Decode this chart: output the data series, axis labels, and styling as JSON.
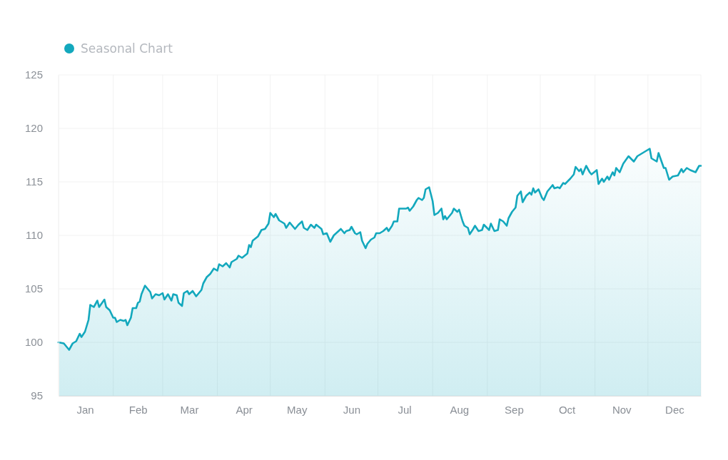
{
  "chart_data": {
    "type": "area",
    "legend": "top left",
    "grid": true,
    "marker": "none",
    "line_style": "solid",
    "xlim": [
      "--01-01",
      "--12-31"
    ],
    "xticks": [
      {
        "value": "--01-01",
        "label": null
      },
      {
        "value": "--01-16",
        "label": "Jan"
      },
      {
        "value": "--02-01",
        "label": null
      },
      {
        "value": "--02-15",
        "label": "Feb"
      },
      {
        "value": "--03-01",
        "label": null
      },
      {
        "value": "--03-16",
        "label": "Mar"
      },
      {
        "value": "--04-01",
        "label": null
      },
      {
        "value": "--04-16",
        "label": "Apr"
      },
      {
        "value": "--05-01",
        "label": null
      },
      {
        "value": "--05-16",
        "label": "May"
      },
      {
        "value": "--06-01",
        "label": null
      },
      {
        "value": "--06-16",
        "label": "Jun"
      },
      {
        "value": "--07-01",
        "label": null
      },
      {
        "value": "--07-16",
        "label": "Jul"
      },
      {
        "value": "--08-01",
        "label": null
      },
      {
        "value": "--08-16",
        "label": "Aug"
      },
      {
        "value": "--09-01",
        "label": null
      },
      {
        "value": "--09-16",
        "label": "Sep"
      },
      {
        "value": "--10-01",
        "label": null
      },
      {
        "value": "--10-16",
        "label": "Oct"
      },
      {
        "value": "--11-01",
        "label": null
      },
      {
        "value": "--11-16",
        "label": "Nov"
      },
      {
        "value": "--12-01",
        "label": null
      },
      {
        "value": "--12-16",
        "label": "Dec"
      },
      {
        "value": "--12-31",
        "label": null
      }
    ],
    "ylim": [
      95,
      125
    ],
    "yticks": [
      95,
      100,
      105,
      110,
      115,
      120,
      125
    ],
    "x": [
      "--01-01",
      "--01-04",
      "--01-07",
      "--01-09",
      "--01-11",
      "--01-13",
      "--01-14",
      "--01-16",
      "--01-18",
      "--01-19",
      "--01-21",
      "--01-23",
      "--01-24",
      "--01-27",
      "--01-28",
      "--01-30",
      "--02-01",
      "--02-02",
      "--02-03",
      "--02-05",
      "--02-07",
      "--02-08",
      "--02-09",
      "--02-11",
      "--02-12",
      "--02-14",
      "--02-15",
      "--02-16",
      "--02-17",
      "--02-19",
      "--02-21",
      "--02-22",
      "--02-23",
      "--02-25",
      "--02-27",
      "--03-01",
      "--03-02",
      "--03-04",
      "--03-06",
      "--03-07",
      "--03-09",
      "--03-10",
      "--03-12",
      "--03-13",
      "--03-15",
      "--03-16",
      "--03-18",
      "--03-20",
      "--03-23",
      "--03-24",
      "--03-26",
      "--03-28",
      "--03-30",
      "--04-01",
      "--04-02",
      "--04-04",
      "--04-06",
      "--04-08",
      "--04-09",
      "--04-12",
      "--04-13",
      "--04-15",
      "--04-18",
      "--04-19",
      "--04-20",
      "--04-21",
      "--04-24",
      "--04-26",
      "--04-28",
      "--04-30",
      "--05-01",
      "--05-03",
      "--05-04",
      "--05-06",
      "--05-07",
      "--05-09",
      "--05-10",
      "--05-12",
      "--05-14",
      "--05-15",
      "--05-17",
      "--05-19",
      "--05-20",
      "--05-22",
      "--05-24",
      "--05-26",
      "--05-27",
      "--05-30",
      "--05-31",
      "--06-02",
      "--06-04",
      "--06-06",
      "--06-08",
      "--06-10",
      "--06-12",
      "--06-13",
      "--06-15",
      "--06-16",
      "--06-18",
      "--06-19",
      "--06-21",
      "--06-22",
      "--06-24",
      "--06-25",
      "--06-27",
      "--06-29",
      "--06-30",
      "--07-02",
      "--07-04",
      "--07-06",
      "--07-07",
      "--07-09",
      "--07-10",
      "--07-12",
      "--07-13",
      "--07-15",
      "--07-17",
      "--07-18",
      "--07-19",
      "--07-21",
      "--07-23",
      "--07-24",
      "--07-26",
      "--07-27",
      "--07-28",
      "--07-30",
      "--08-01",
      "--08-02",
      "--08-04",
      "--08-06",
      "--08-07",
      "--08-08",
      "--08-09",
      "--08-12",
      "--08-13",
      "--08-15",
      "--08-16",
      "--08-18",
      "--08-19",
      "--08-21",
      "--08-22",
      "--08-24",
      "--08-25",
      "--08-27",
      "--08-29",
      "--08-30",
      "--09-02",
      "--09-03",
      "--09-05",
      "--09-07",
      "--09-08",
      "--09-10",
      "--09-12",
      "--09-13",
      "--09-15",
      "--09-17",
      "--09-18",
      "--09-20",
      "--09-21",
      "--09-23",
      "--09-25",
      "--09-26",
      "--09-27",
      "--09-28",
      "--09-30",
      "--10-02",
      "--10-03",
      "--10-05",
      "--10-07",
      "--10-08",
      "--10-09",
      "--10-11",
      "--10-12",
      "--10-14",
      "--10-15",
      "--10-18",
      "--10-20",
      "--10-21",
      "--10-23",
      "--10-24",
      "--10-25",
      "--10-27",
      "--10-29",
      "--10-30",
      "--11-02",
      "--11-03",
      "--11-05",
      "--11-06",
      "--11-08",
      "--11-09",
      "--11-11",
      "--11-12",
      "--11-13",
      "--11-15",
      "--11-17",
      "--11-20",
      "--11-23",
      "--11-25",
      "--11-28",
      "--11-30",
      "--12-02",
      "--12-03",
      "--12-06",
      "--12-07",
      "--12-10",
      "--12-11",
      "--12-13",
      "--12-15",
      "--12-18",
      "--12-20",
      "--12-21",
      "--12-23",
      "--12-25",
      "--12-28",
      "--12-30",
      "--12-31"
    ],
    "series": [
      {
        "name": "Seasonal Chart",
        "color": "#13a8bd",
        "values": [
          100.0,
          99.9,
          99.3,
          99.9,
          100.1,
          100.8,
          100.5,
          101.0,
          102.1,
          103.5,
          103.3,
          103.9,
          103.3,
          104.0,
          103.3,
          103.0,
          102.3,
          102.3,
          101.9,
          102.1,
          102.0,
          102.1,
          101.6,
          102.3,
          103.2,
          103.2,
          103.7,
          103.8,
          104.5,
          105.3,
          104.9,
          104.7,
          104.1,
          104.5,
          104.4,
          104.6,
          104.0,
          104.5,
          103.9,
          104.5,
          104.4,
          103.7,
          103.4,
          104.6,
          104.8,
          104.5,
          104.8,
          104.3,
          104.9,
          105.5,
          106.1,
          106.4,
          106.9,
          106.7,
          107.3,
          107.1,
          107.4,
          107.0,
          107.5,
          107.8,
          108.1,
          107.9,
          108.3,
          109.1,
          108.9,
          109.5,
          109.9,
          110.5,
          110.6,
          111.1,
          112.1,
          111.7,
          112.0,
          111.4,
          111.3,
          111.1,
          110.7,
          111.2,
          110.8,
          110.6,
          111.0,
          111.3,
          110.7,
          110.5,
          111.0,
          110.7,
          111.0,
          110.6,
          110.1,
          110.2,
          109.4,
          110.0,
          110.3,
          110.6,
          110.2,
          110.4,
          110.5,
          110.8,
          110.2,
          110.1,
          110.3,
          109.5,
          108.8,
          109.2,
          109.6,
          109.8,
          110.2,
          110.2,
          110.4,
          110.7,
          110.4,
          110.9,
          111.3,
          111.3,
          112.5,
          112.5,
          112.5,
          112.6,
          112.3,
          112.7,
          113.3,
          113.5,
          113.3,
          113.5,
          114.3,
          114.5,
          113.2,
          111.9,
          112.1,
          112.5,
          111.5,
          111.8,
          111.5,
          112.1,
          112.5,
          112.2,
          112.4,
          111.3,
          110.9,
          110.7,
          110.1,
          110.6,
          110.9,
          110.4,
          110.5,
          111.0,
          110.5,
          111.1,
          110.4,
          110.5,
          111.5,
          111.3,
          110.9,
          111.6,
          112.2,
          112.6,
          113.7,
          114.1,
          113.1,
          113.7,
          114.0,
          113.8,
          114.4,
          114.0,
          114.3,
          113.5,
          113.3,
          114.1,
          114.5,
          114.7,
          114.4,
          114.5,
          114.4,
          114.9,
          114.8,
          115.3,
          115.7,
          116.4,
          116.0,
          116.2,
          115.7,
          116.5,
          115.9,
          115.7,
          116.1,
          114.8,
          115.3,
          115.0,
          115.5,
          115.2,
          115.9,
          115.6,
          116.3,
          115.9,
          116.7,
          117.4,
          116.9,
          117.4,
          117.7,
          117.9,
          118.1,
          117.2,
          116.9,
          117.7,
          116.3,
          116.3,
          115.2,
          115.5,
          115.6,
          116.2,
          115.9,
          116.3,
          116.1,
          115.9,
          116.5,
          116.5
        ]
      }
    ]
  }
}
